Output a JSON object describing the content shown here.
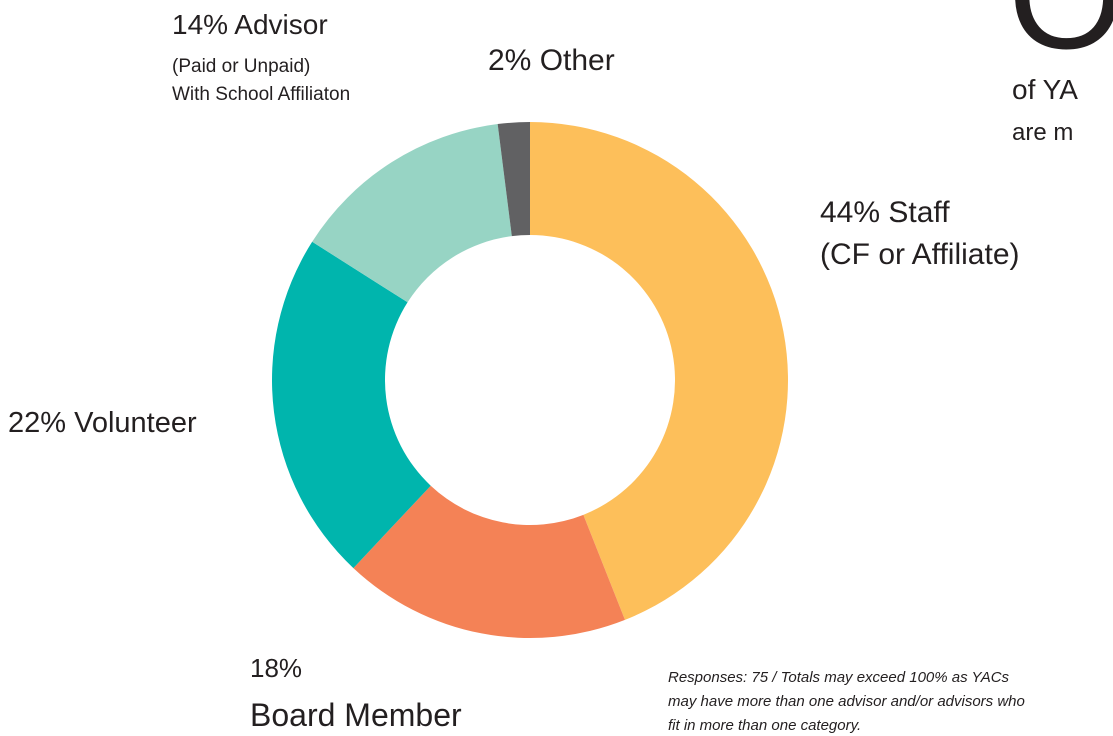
{
  "chart_data": {
    "type": "pie",
    "donut": true,
    "categories": [
      "Staff",
      "Board Member",
      "Volunteer",
      "Advisor",
      "Other"
    ],
    "category_notes": [
      [
        "(CF or Affiliate)"
      ],
      [],
      [],
      [
        "(Paid or Unpaid)",
        "With School Affiliaton"
      ],
      []
    ],
    "values": [
      44,
      18,
      22,
      14,
      2
    ],
    "value_labels": [
      "44%",
      "18%",
      "22%",
      "14%",
      "2%"
    ],
    "colors": [
      "#fdbf5a",
      "#f48256",
      "#00b5ad",
      "#97d4c4",
      "#616163"
    ],
    "headline_fragments": [
      "O",
      "of YA",
      "are m"
    ],
    "footnote": [
      "Responses: 75 / Totals may exceed 100% as YACs",
      "may have more than one advisor and/or advisors who",
      "fit in more than one category."
    ]
  }
}
